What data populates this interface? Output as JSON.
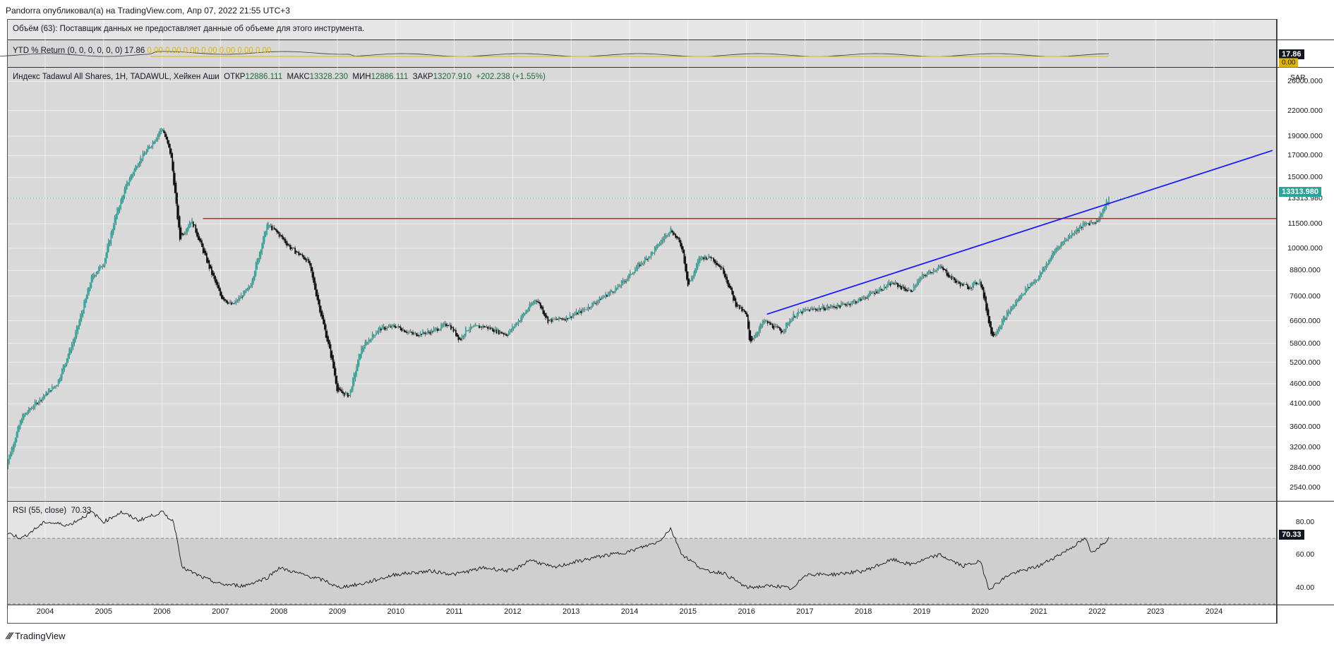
{
  "header": {
    "published": "Pandorra опубликовал(а) на TradingView.com, Апр 07, 2022 21:55 UTC+3"
  },
  "volume_pane": {
    "legend": "Объём (63): Поставщик данных не предоставляет данные об объеме для этого инструмента."
  },
  "ytd_pane": {
    "legend_name": "YTD % Return (0, 0, 0, 0, 0, 0)",
    "legend_value": "17.86",
    "legend_extra": "0.00  0.00  0.00  0.00  0.00  0.00  0.00",
    "badge": "17.86",
    "badge2": "0.00"
  },
  "price_pane": {
    "symbol": "Индекс Tadawul All Shares, 1Н, TADAWUL, Хейкен Аши",
    "open_label": "ОТКР",
    "open": "12886.111",
    "high_label": "МАКС",
    "high": "13328.230",
    "low_label": "МИН",
    "low": "12886.111",
    "close_label": "ЗАКР",
    "close": "13207.910",
    "change": "+202.238 (+1.55%)",
    "currency": "SAR",
    "last_price": "13313.980"
  },
  "rsi_pane": {
    "legend_name": "RSI (55, close)",
    "legend_value": "70.33",
    "badge": "70.33"
  },
  "brand": "TradingView",
  "colors": {
    "candle_up": "#26a69a",
    "candle_down": "#000000",
    "resistance": "#c62828",
    "trendline": "#1a1aff",
    "ytd_line": "#e0b400",
    "pane_bg": "#d8d8d8"
  },
  "chart_data": [
    {
      "type": "candlestick",
      "scale": "log",
      "ylim": [
        2400,
        28000
      ],
      "yticks": [
        "26000.000",
        "22000.000",
        "19000.000",
        "17000.000",
        "15000.000",
        "13313.980",
        "11500.000",
        "10000.000",
        "8800.000",
        "7600.000",
        "6600.000",
        "5800.000",
        "5200.000",
        "4600.000",
        "4100.000",
        "3600.000",
        "3200.000",
        "2840.000",
        "2540.000"
      ],
      "xticks": [
        "2004",
        "2005",
        "2006",
        "2007",
        "2008",
        "2009",
        "2010",
        "2011",
        "2012",
        "2013",
        "2014",
        "2015",
        "2016",
        "2017",
        "2018",
        "2019",
        "2020",
        "2021",
        "2022",
        "2023",
        "2024"
      ],
      "series": [
        {
          "x": [
            2003.3,
            2003.6,
            2003.9,
            2004.2,
            2004.5,
            2004.8,
            2005.0,
            2005.2,
            2005.4,
            2005.6,
            2005.8,
            2006.0,
            2006.15,
            2006.3,
            2006.5,
            2006.8,
            2007.0,
            2007.2,
            2007.5,
            2007.8,
            2008.0,
            2008.2,
            2008.5,
            2008.7,
            2008.9,
            2009.0,
            2009.2,
            2009.4,
            2009.7,
            2010.0,
            2010.3,
            2010.6,
            2010.9,
            2011.1,
            2011.2,
            2011.5,
            2011.9,
            2012.2,
            2012.4,
            2012.6,
            2012.9,
            2013.2,
            2013.5,
            2013.8,
            2014.1,
            2014.4,
            2014.7,
            2014.9,
            2015.0,
            2015.2,
            2015.4,
            2015.6,
            2015.8,
            2016.0,
            2016.05,
            2016.3,
            2016.6,
            2016.8,
            2017.0,
            2017.3,
            2017.6,
            2017.9,
            2018.2,
            2018.5,
            2018.8,
            2019.0,
            2019.3,
            2019.6,
            2019.8,
            2020.0,
            2020.2,
            2020.5,
            2020.8,
            2021.0,
            2021.3,
            2021.6,
            2021.8,
            2022.0,
            2022.2
          ],
          "close": [
            2800,
            3800,
            4200,
            4600,
            6000,
            8500,
            9200,
            12000,
            14500,
            16500,
            18000,
            20000,
            17000,
            10500,
            11800,
            9000,
            7600,
            7200,
            8000,
            11500,
            10800,
            10000,
            9300,
            7000,
            5300,
            4400,
            4300,
            5600,
            6300,
            6400,
            6100,
            6200,
            6500,
            5900,
            6300,
            6400,
            6100,
            6900,
            7500,
            6600,
            6700,
            7000,
            7500,
            8000,
            8900,
            9800,
            11200,
            10000,
            8000,
            9500,
            9500,
            8800,
            7300,
            6800,
            5800,
            6600,
            6200,
            6800,
            7000,
            7100,
            7200,
            7400,
            7800,
            8200,
            7800,
            8500,
            9000,
            8200,
            8000,
            8300,
            6000,
            7000,
            8000,
            8500,
            10000,
            11000,
            11500,
            11700,
            13300
          ]
        }
      ],
      "resistance_level": 11850,
      "trendline": {
        "x": [
          2016.35,
          2025.0
        ],
        "y": [
          6850,
          17500
        ]
      }
    },
    {
      "type": "line",
      "name": "RSI (55, close)",
      "ylim": [
        30,
        92
      ],
      "yticks": [
        "80.00",
        "60.00",
        "40.00"
      ],
      "bands": [
        70,
        30
      ],
      "x": [
        2003.0,
        2003.3,
        2003.6,
        2004.0,
        2004.4,
        2004.8,
        2005.0,
        2005.3,
        2005.6,
        2006.0,
        2006.2,
        2006.35,
        2006.7,
        2007.0,
        2007.4,
        2007.8,
        2008.0,
        2008.4,
        2008.8,
        2009.0,
        2009.4,
        2010.0,
        2010.6,
        2011.0,
        2011.5,
        2012.0,
        2012.3,
        2012.7,
        2013.0,
        2013.5,
        2014.0,
        2014.5,
        2014.7,
        2014.9,
        2015.3,
        2015.6,
        2016.0,
        2016.5,
        2016.8,
        2017.0,
        2017.5,
        2018.0,
        2018.5,
        2018.8,
        2019.3,
        2019.7,
        2020.0,
        2020.15,
        2020.5,
        2021.0,
        2021.5,
        2021.8,
        2021.9,
        2022.0,
        2022.2
      ],
      "y": [
        62,
        74,
        70,
        80,
        78,
        86,
        80,
        86,
        81,
        86,
        80,
        52,
        46,
        42,
        41,
        46,
        52,
        48,
        44,
        40,
        42,
        48,
        50,
        48,
        52,
        50,
        57,
        52,
        55,
        59,
        62,
        68,
        76,
        60,
        50,
        49,
        40,
        41,
        39,
        48,
        48,
        50,
        57,
        54,
        60,
        53,
        56,
        39,
        48,
        53,
        63,
        70,
        61,
        64,
        70
      ]
    }
  ]
}
